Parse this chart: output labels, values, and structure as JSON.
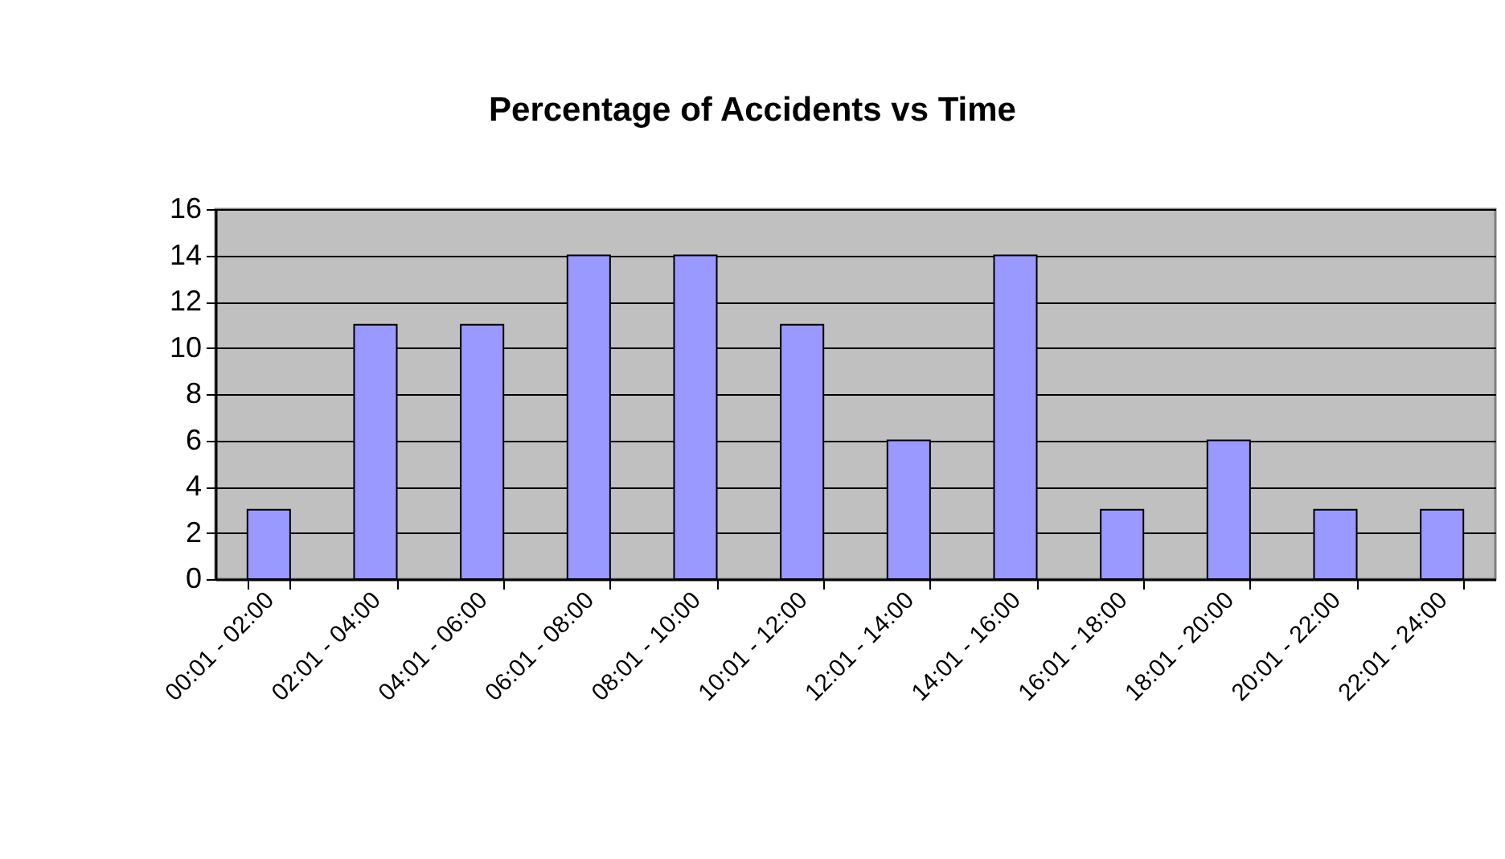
{
  "chart_data": {
    "type": "bar",
    "title": "Percentage of Accidents vs Time",
    "categories": [
      "00:01 - 02:00",
      "02:01 - 04:00",
      "04:01 - 06:00",
      "06:01 - 08:00",
      "08:01 - 10:00",
      "10:01 - 12:00",
      "12:01 - 14:00",
      "14:01 - 16:00",
      "16:01 - 18:00",
      "18:01 - 20:00",
      "20:01 - 22:00",
      "22:01 - 24:00"
    ],
    "values": [
      3,
      11,
      11,
      14,
      14,
      11,
      6,
      14,
      3,
      6,
      3,
      3
    ],
    "color": "#9999ff",
    "ylim": [
      0,
      16
    ],
    "yticks": [
      0,
      2,
      4,
      6,
      8,
      10,
      12,
      14,
      16
    ],
    "grid": "y"
  }
}
